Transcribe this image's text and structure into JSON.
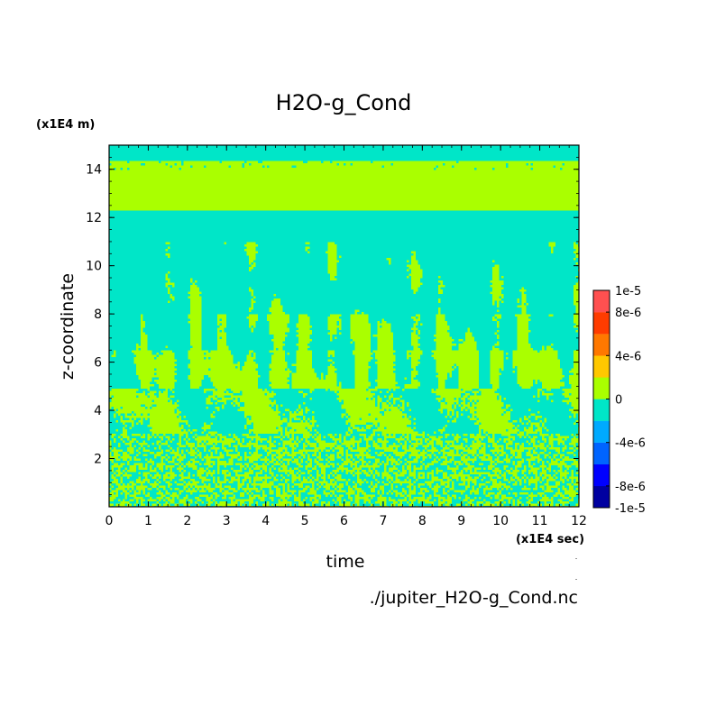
{
  "chart_data": {
    "type": "heatmap",
    "title": "H2O-g_Cond",
    "xlabel": "time",
    "ylabel": "z-coordinate",
    "x_unit_label": "(x1E4 sec)",
    "y_unit_label": "(x1E4 m)",
    "xlim": [
      0,
      12
    ],
    "ylim": [
      0,
      15
    ],
    "x_ticks": [
      "0",
      "1",
      "2",
      "3",
      "4",
      "5",
      "6",
      "7",
      "8",
      "9",
      "10",
      "11",
      "12"
    ],
    "y_ticks": [
      "2",
      "4",
      "6",
      "8",
      "10",
      "12",
      "14"
    ],
    "source_file": "./jupiter_H2O-g_Cond.nc",
    "colorbar": {
      "range": [
        -1e-05,
        1e-05
      ],
      "tick_labels": [
        "1e-5",
        "8e-6",
        "4e-6",
        "0",
        "-4e-6",
        "-8e-6",
        "-1e-5"
      ],
      "colors": [
        "#0000a0",
        "#0000ff",
        "#0064ff",
        "#00aaff",
        "#00e6c8",
        "#aaff00",
        "#ffc800",
        "#ff7800",
        "#ff3c00",
        "#ff5050"
      ],
      "zero_color_above": "#aaff00",
      "zero_color_below": "#00e6c8"
    },
    "regions": [
      {
        "name": "noisy lower layer",
        "z": [
          0,
          5
        ],
        "values": [
          -2e-06,
          2e-06
        ]
      },
      {
        "name": "mixed mid layer",
        "z": [
          5,
          11
        ],
        "values": [
          -2e-06,
          2e-06
        ]
      },
      {
        "name": "cyan band",
        "z": [
          11,
          12.3
        ],
        "value": -2e-06
      },
      {
        "name": "green upper band",
        "z": [
          12.3,
          14.3
        ],
        "value": 2e-06
      },
      {
        "name": "top band",
        "z": [
          14.3,
          15
        ],
        "value": -2e-06
      }
    ]
  }
}
